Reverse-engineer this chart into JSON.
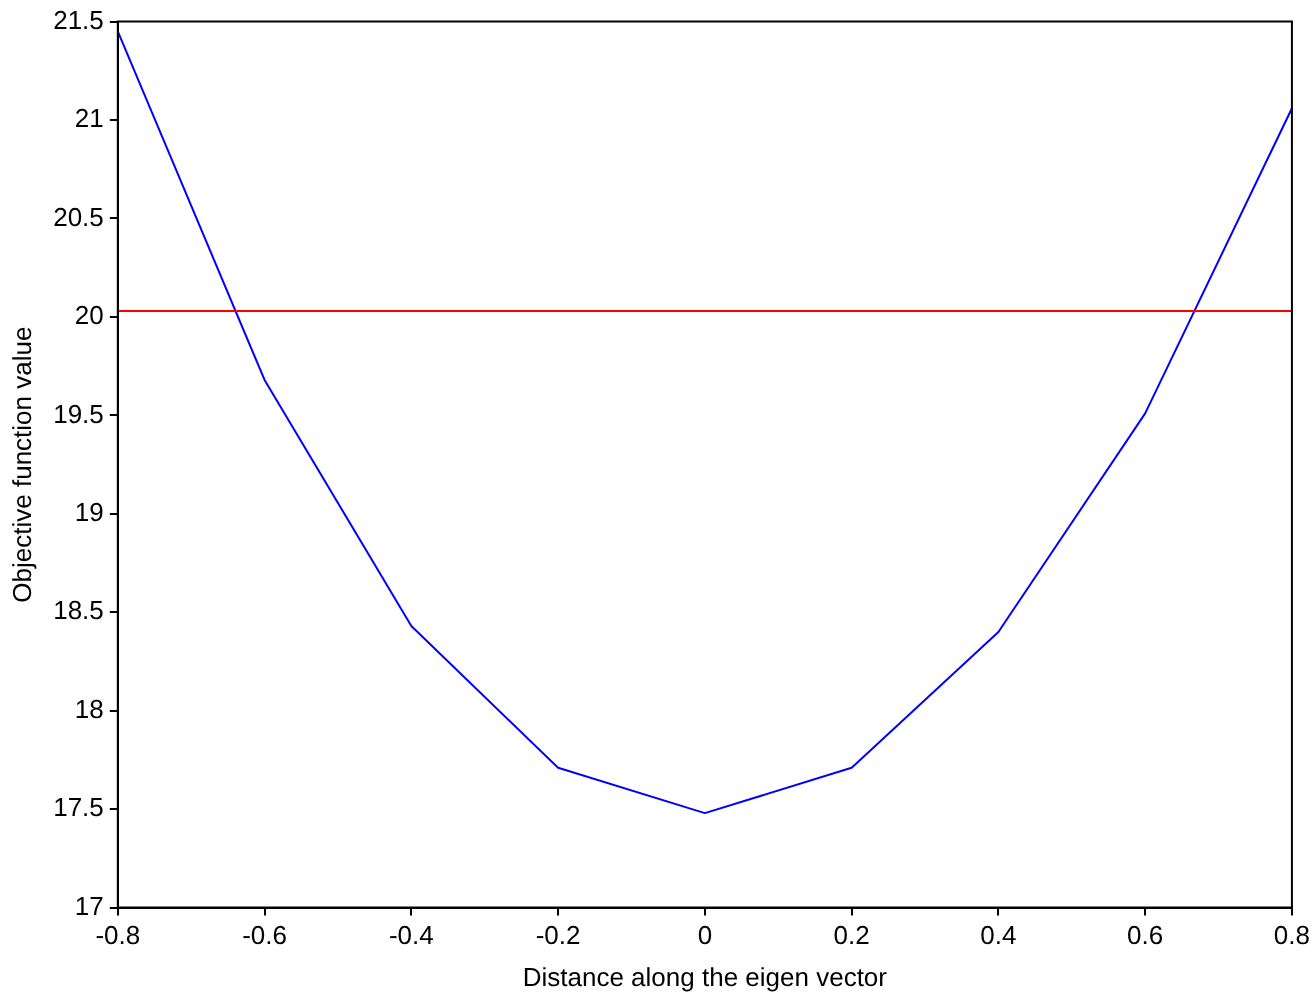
{
  "chart_data": {
    "type": "line",
    "xlabel": "Distance along the eigen vector",
    "ylabel": "Objective function value",
    "x": [
      -0.8,
      -0.6,
      -0.4,
      -0.2,
      0,
      0.2,
      0.4,
      0.6,
      0.8
    ],
    "series": [
      {
        "color": "#0000ff",
        "values": [
          21.45,
          19.68,
          18.43,
          17.71,
          17.48,
          17.71,
          18.4,
          19.51,
          21.06
        ]
      }
    ],
    "xlim": [
      -0.8,
      0.8
    ],
    "xticks": [
      -0.8,
      -0.6,
      -0.4,
      -0.2,
      0,
      0.2,
      0.4,
      0.6,
      0.8
    ],
    "ylim": [
      17,
      21.5
    ],
    "yticks": [
      17,
      17.5,
      18,
      18.5,
      19,
      19.5,
      20,
      20.5,
      21,
      21.5
    ],
    "ref_lines": [
      {
        "axis": "y",
        "value": 20.03,
        "color": "#ff0000"
      }
    ],
    "grid": false,
    "legend": false,
    "marker": "none",
    "line_style": "solid"
  }
}
